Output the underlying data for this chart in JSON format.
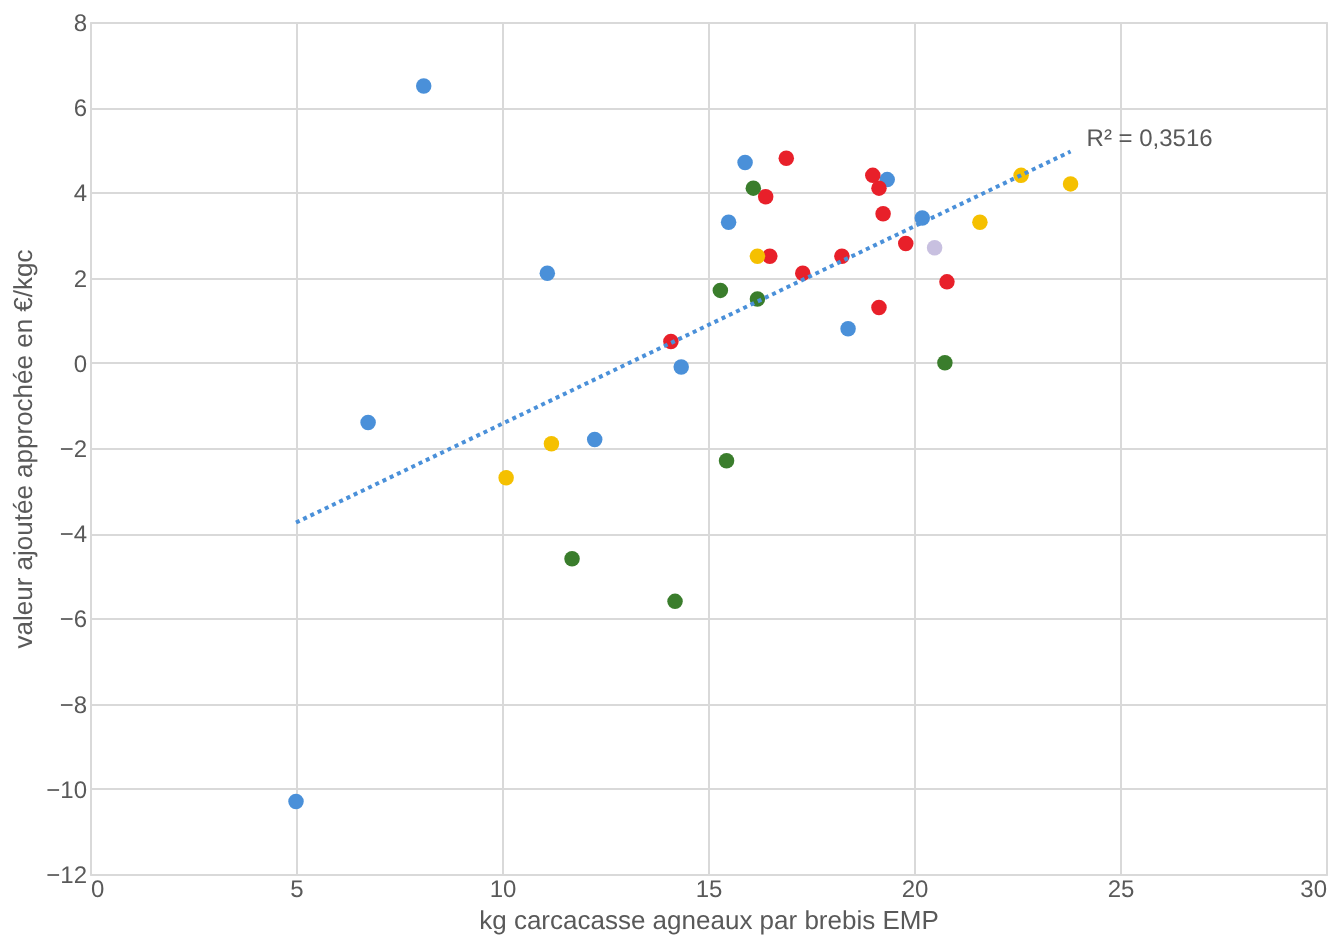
{
  "chart_data": {
    "type": "scatter",
    "xlabel": "kg carcacasse agneaux par  brebis EMP",
    "ylabel": "valeur ajoutée approchée en €/kgc",
    "xlim": [
      0,
      30
    ],
    "xticks": [
      0,
      5,
      10,
      15,
      20,
      25,
      30
    ],
    "ylim": [
      -12,
      8
    ],
    "yticks": [
      -12,
      -10,
      -8,
      -6,
      -4,
      -2,
      0,
      2,
      4,
      6,
      8
    ],
    "grid": true,
    "marker": "circle",
    "series": [
      {
        "color": "#4a90d9",
        "x": [
          5,
          6.75,
          8.1,
          11.1,
          12.25,
          14.35,
          15.5,
          15.9,
          18.4,
          19.35,
          20.2
        ],
        "values": [
          -10.3,
          -1.4,
          6.5,
          2.1,
          -1.8,
          -0.1,
          3.3,
          4.7,
          0.8,
          4.3,
          3.4
        ]
      },
      {
        "color": "#e8202a",
        "x": [
          14.1,
          16.4,
          16.5,
          16.9,
          17.3,
          18.25,
          19.0,
          19.15,
          19.15,
          19.25,
          19.8,
          20.8
        ],
        "values": [
          0.5,
          3.9,
          2.5,
          4.8,
          2.1,
          2.5,
          4.4,
          4.1,
          1.3,
          3.5,
          2.8,
          1.9
        ]
      },
      {
        "color": "#3a7d2c",
        "x": [
          11.7,
          14.2,
          15.3,
          15.45,
          16.1,
          16.2,
          20.75
        ],
        "values": [
          -4.6,
          -5.6,
          1.7,
          -2.3,
          4.1,
          1.5,
          0.0
        ]
      },
      {
        "color": "#f5c000",
        "x": [
          10.1,
          11.2,
          16.2,
          21.6,
          22.6,
          23.8
        ],
        "values": [
          -2.7,
          -1.9,
          2.5,
          3.3,
          4.4,
          4.2
        ]
      },
      {
        "color": "#c8c0e0",
        "x": [
          20.5
        ],
        "values": [
          2.7
        ]
      },
      {
        "type": "line",
        "color": "#4a90d9",
        "line_style": "dotted",
        "marker": "none",
        "x": [
          5,
          23.8
        ],
        "values": [
          -3.75,
          4.96
        ]
      }
    ],
    "annotations": [
      {
        "text": "R² = 0,3516",
        "x": 23.8,
        "y": 5
      }
    ]
  }
}
